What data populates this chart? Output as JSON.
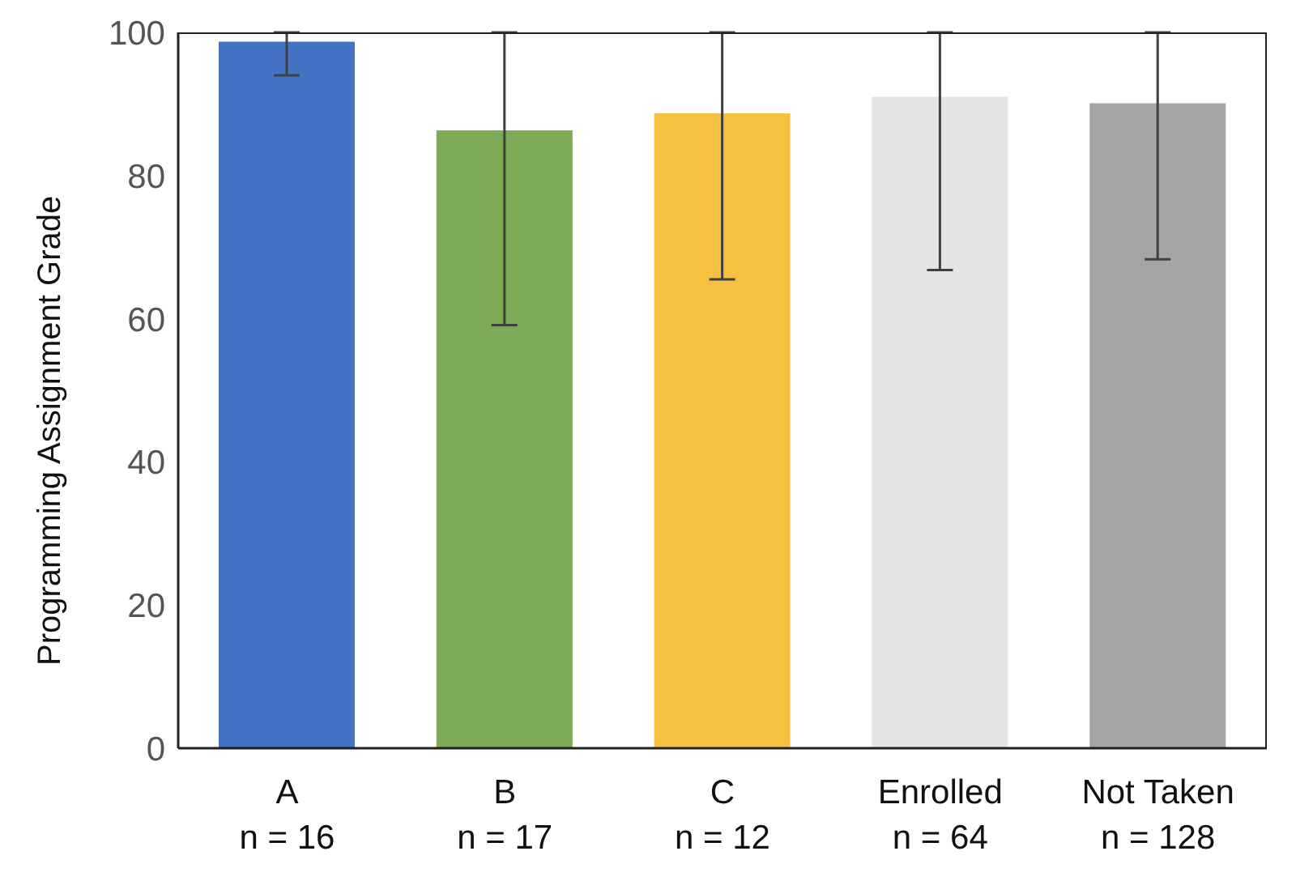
{
  "chart_data": {
    "type": "bar",
    "ylabel": "Programming Assignment Grade",
    "categories": [
      "A\nn = 16",
      "B\nn = 17",
      "C\nn = 12",
      "Enrolled\nn = 64",
      "Not Taken\nn = 128"
    ],
    "values": [
      98.7,
      86.3,
      88.7,
      91.0,
      90.1
    ],
    "colors": [
      "#4472c4",
      "#7caa55",
      "#f8c040",
      "#e4e4e4",
      "#a5a5a5"
    ],
    "errors": [
      [
        94.0,
        100
      ],
      [
        59.1,
        100
      ],
      [
        65.5,
        100
      ],
      [
        66.8,
        100
      ],
      [
        68.3,
        100
      ]
    ],
    "ylim": [
      0,
      100
    ],
    "yticks": [
      0,
      20,
      40,
      60,
      80,
      100
    ],
    "grid": false,
    "legend": false
  }
}
